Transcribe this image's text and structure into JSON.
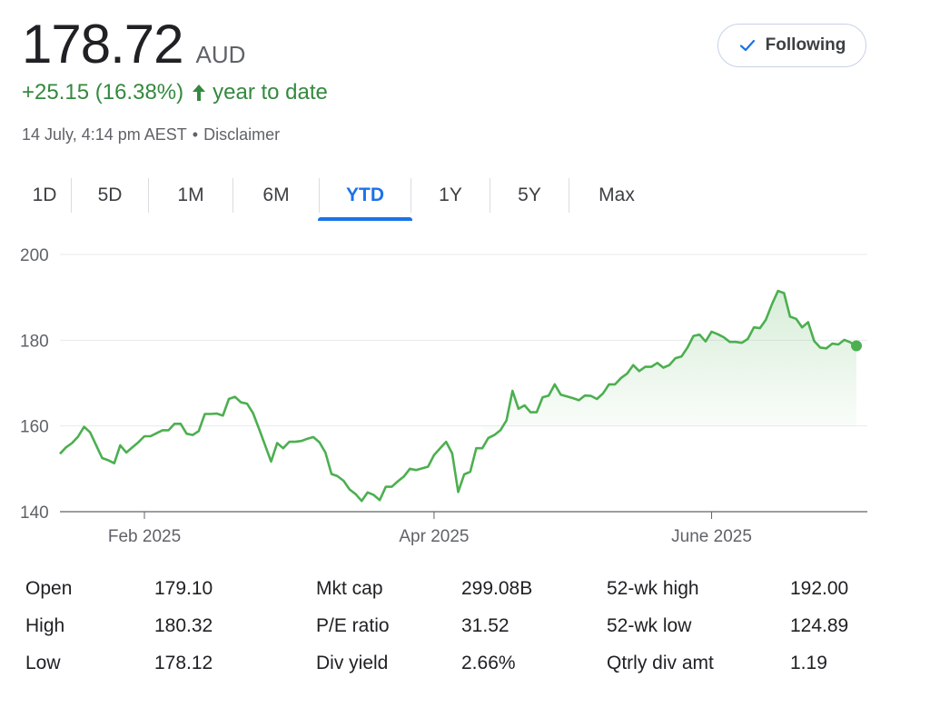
{
  "quote": {
    "price": "178.72",
    "currency": "AUD",
    "change": "+25.15 (16.38%)",
    "change_period": "year to date",
    "timestamp": "14 July, 4:14 pm AEST",
    "separator": "•",
    "disclaimer": "Disclaimer"
  },
  "follow_button": {
    "label": "Following",
    "icon": "check-icon"
  },
  "tabs": [
    {
      "label": "1D",
      "active": false
    },
    {
      "label": "5D",
      "active": false
    },
    {
      "label": "1M",
      "active": false
    },
    {
      "label": "6M",
      "active": false
    },
    {
      "label": "YTD",
      "active": true
    },
    {
      "label": "1Y",
      "active": false
    },
    {
      "label": "5Y",
      "active": false
    },
    {
      "label": "Max",
      "active": false
    }
  ],
  "colors": {
    "line": "#4caf50",
    "positive": "#34893f",
    "accent": "#1a73e8"
  },
  "chart_data": {
    "type": "area",
    "ylim": [
      140,
      200
    ],
    "y_ticks": [
      "140",
      "160",
      "180",
      "200"
    ],
    "x_ticks": [
      "Feb 2025",
      "Apr 2025",
      "June 2025"
    ],
    "x_tick_index": [
      14,
      62,
      108
    ],
    "values": [
      153.5,
      155,
      156,
      157.5,
      159.8,
      158.5,
      155.5,
      152.5,
      152,
      151.3,
      155.5,
      153.8,
      155,
      156.2,
      157.6,
      157.6,
      158.3,
      159,
      159,
      160.5,
      160.5,
      158.2,
      157.9,
      158.8,
      162.8,
      162.8,
      162.9,
      162.4,
      166.3,
      166.8,
      165.5,
      165.2,
      163,
      159.3,
      155.5,
      151.7,
      156,
      154.8,
      156.3,
      156.3,
      156.5,
      157,
      157.4,
      156.2,
      153.8,
      148.8,
      148.3,
      147.2,
      145.2,
      144.1,
      142.5,
      144.5,
      143.9,
      142.7,
      145.8,
      145.8,
      147.1,
      148.2,
      150,
      149.7,
      150.1,
      150.5,
      153.2,
      154.8,
      156.3,
      153.6,
      144.6,
      148.7,
      149.3,
      154.8,
      154.8,
      157.2,
      157.9,
      159,
      161.3,
      168.2,
      164,
      164.8,
      163.2,
      163.2,
      166.7,
      167.1,
      169.7,
      167.3,
      166.9,
      166.5,
      166,
      167.1,
      167,
      166.3,
      167.6,
      169.7,
      169.7,
      171.2,
      172.2,
      174.2,
      172.8,
      173.8,
      173.8,
      174.7,
      173.6,
      174.2,
      175.8,
      176.2,
      178.3,
      181,
      181.3,
      179.7,
      182,
      181.4,
      180.7,
      179.6,
      179.6,
      179.4,
      180.3,
      183,
      182.8,
      184.8,
      188.4,
      191.5,
      191,
      185.5,
      185,
      183,
      184.2,
      179.8,
      178.3,
      178.1,
      179.2,
      179,
      180.1,
      179.5,
      178.7
    ]
  },
  "stats": [
    [
      {
        "label": "Open",
        "value": "179.10"
      },
      {
        "label": "High",
        "value": "180.32"
      },
      {
        "label": "Low",
        "value": "178.12"
      }
    ],
    [
      {
        "label": "Mkt cap",
        "value": "299.08B"
      },
      {
        "label": "P/E ratio",
        "value": "31.52"
      },
      {
        "label": "Div yield",
        "value": "2.66%"
      }
    ],
    [
      {
        "label": "52-wk high",
        "value": "192.00"
      },
      {
        "label": "52-wk low",
        "value": "124.89"
      },
      {
        "label": "Qtrly div amt",
        "value": "1.19"
      }
    ]
  ]
}
